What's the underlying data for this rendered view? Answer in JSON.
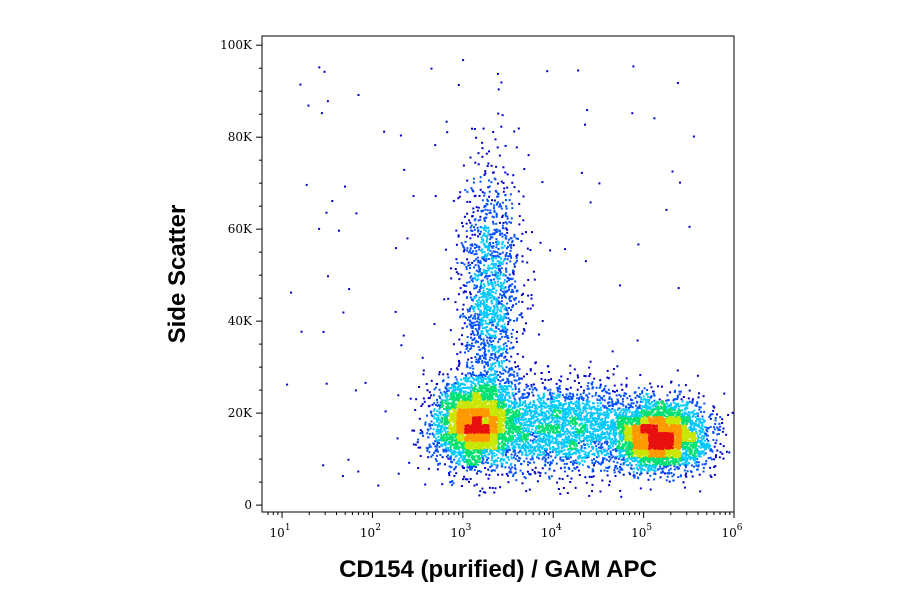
{
  "chart_data": {
    "type": "scatter",
    "subtype": "flow-cytometry-density-dot-plot",
    "xlabel": "CD154 (purified) / GAM APC",
    "ylabel": "Side Scatter",
    "x_scale": "log",
    "xlim": [
      6,
      1000000
    ],
    "ylim": [
      -1500,
      102000
    ],
    "x_ticks": [
      {
        "value": 10,
        "base": "10",
        "exp": "1"
      },
      {
        "value": 100,
        "base": "10",
        "exp": "2"
      },
      {
        "value": 1000,
        "base": "10",
        "exp": "3"
      },
      {
        "value": 10000,
        "base": "10",
        "exp": "4"
      },
      {
        "value": 100000,
        "base": "10",
        "exp": "5"
      },
      {
        "value": 1000000,
        "base": "10",
        "exp": "6"
      }
    ],
    "y_ticks": [
      {
        "value": 0,
        "label": "0"
      },
      {
        "value": 20000,
        "label": "20K"
      },
      {
        "value": 40000,
        "label": "40K"
      },
      {
        "value": 60000,
        "label": "60K"
      },
      {
        "value": 80000,
        "label": "80K"
      },
      {
        "value": 100000,
        "label": "100K"
      }
    ],
    "grid": false,
    "legend": "none",
    "color_scale": [
      "#0000cc",
      "#0050ff",
      "#00c8ff",
      "#00e070",
      "#c8e600",
      "#ff9900",
      "#e81010"
    ],
    "populations": [
      {
        "name": "",
        "x_center": 1300,
        "y_center": 18000,
        "x_spread_log": 0.22,
        "y_spread": 4500,
        "weight": 0.3
      },
      {
        "name": "",
        "x_center": 2000,
        "y_center": 45000,
        "x_spread_log": 0.16,
        "y_spread": 14000,
        "weight": 0.14
      },
      {
        "name": "",
        "x_center": 150000,
        "y_center": 15000,
        "x_spread_log": 0.25,
        "y_spread": 3500,
        "weight": 0.33
      },
      {
        "name": "",
        "x_center": 12000,
        "y_center": 17000,
        "x_spread_log": 0.55,
        "y_spread": 5000,
        "weight": 0.23
      }
    ]
  }
}
